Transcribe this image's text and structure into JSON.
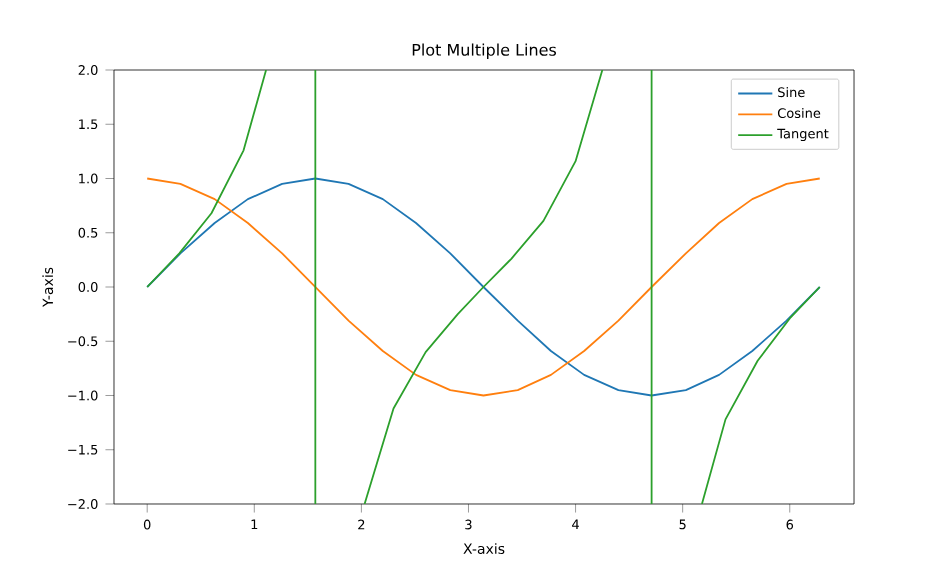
{
  "chart_data": {
    "type": "line",
    "title": "Plot Multiple Lines",
    "xlabel": "X-axis",
    "ylabel": "Y-axis",
    "xlim": [
      -0.31,
      6.6
    ],
    "ylim": [
      -2,
      2
    ],
    "xticks": [
      0,
      1,
      2,
      3,
      4,
      5,
      6
    ],
    "yticks": [
      {
        "value": -2,
        "label": "−2.0"
      },
      {
        "value": -1.5,
        "label": "−1.5"
      },
      {
        "value": -1,
        "label": "−1.0"
      },
      {
        "value": -0.5,
        "label": "−0.5"
      },
      {
        "value": 0,
        "label": "0.0"
      },
      {
        "value": 0.5,
        "label": "0.5"
      },
      {
        "value": 1,
        "label": "1.0"
      },
      {
        "value": 1.5,
        "label": "1.5"
      },
      {
        "value": 2,
        "label": "2.0"
      }
    ],
    "grid": false,
    "legend": "top right",
    "marker": "none",
    "line_style": "solid",
    "series": [
      {
        "name": "Sine",
        "color": "#1f77b4",
        "x": [
          0,
          0.31,
          0.63,
          0.94,
          1.26,
          1.57,
          1.88,
          2.2,
          2.51,
          2.83,
          3.14,
          3.46,
          3.77,
          4.08,
          4.4,
          4.71,
          5.03,
          5.34,
          5.65,
          5.97,
          6.28
        ],
        "values": [
          0,
          0.31,
          0.59,
          0.81,
          0.95,
          1,
          0.95,
          0.81,
          0.59,
          0.31,
          0,
          -0.31,
          -0.59,
          -0.81,
          -0.95,
          -1,
          -0.95,
          -0.81,
          -0.59,
          -0.31,
          0
        ]
      },
      {
        "name": "Cosine",
        "color": "#ff7f0e",
        "x": [
          0,
          0.31,
          0.63,
          0.94,
          1.26,
          1.57,
          1.88,
          2.2,
          2.51,
          2.83,
          3.14,
          3.46,
          3.77,
          4.08,
          4.4,
          4.71,
          5.03,
          5.34,
          5.65,
          5.97,
          6.28
        ],
        "values": [
          1,
          0.95,
          0.81,
          0.59,
          0.31,
          0,
          -0.31,
          -0.59,
          -0.81,
          -0.95,
          -1,
          -0.95,
          -0.81,
          -0.59,
          -0.31,
          0,
          0.31,
          0.59,
          0.81,
          0.95,
          1
        ]
      },
      {
        "name": "Tangent",
        "color": "#2ca02c",
        "x": [
          0,
          0.3,
          0.6,
          0.9,
          1.11,
          1.3,
          1.57,
          1.57,
          1.8,
          2.03,
          2.3,
          2.6,
          2.9,
          3.14,
          3.4,
          3.7,
          4.0,
          4.25,
          4.5,
          4.71,
          4.71,
          5.0,
          5.18,
          5.4,
          5.7,
          6.0,
          6.28
        ],
        "values": [
          0,
          0.31,
          0.68,
          1.26,
          2,
          null,
          2,
          -2,
          null,
          -2,
          -1.12,
          -0.6,
          -0.25,
          0,
          0.26,
          0.61,
          1.16,
          2,
          null,
          2,
          -2,
          null,
          -2,
          -1.22,
          -0.68,
          -0.29,
          0
        ]
      }
    ]
  }
}
